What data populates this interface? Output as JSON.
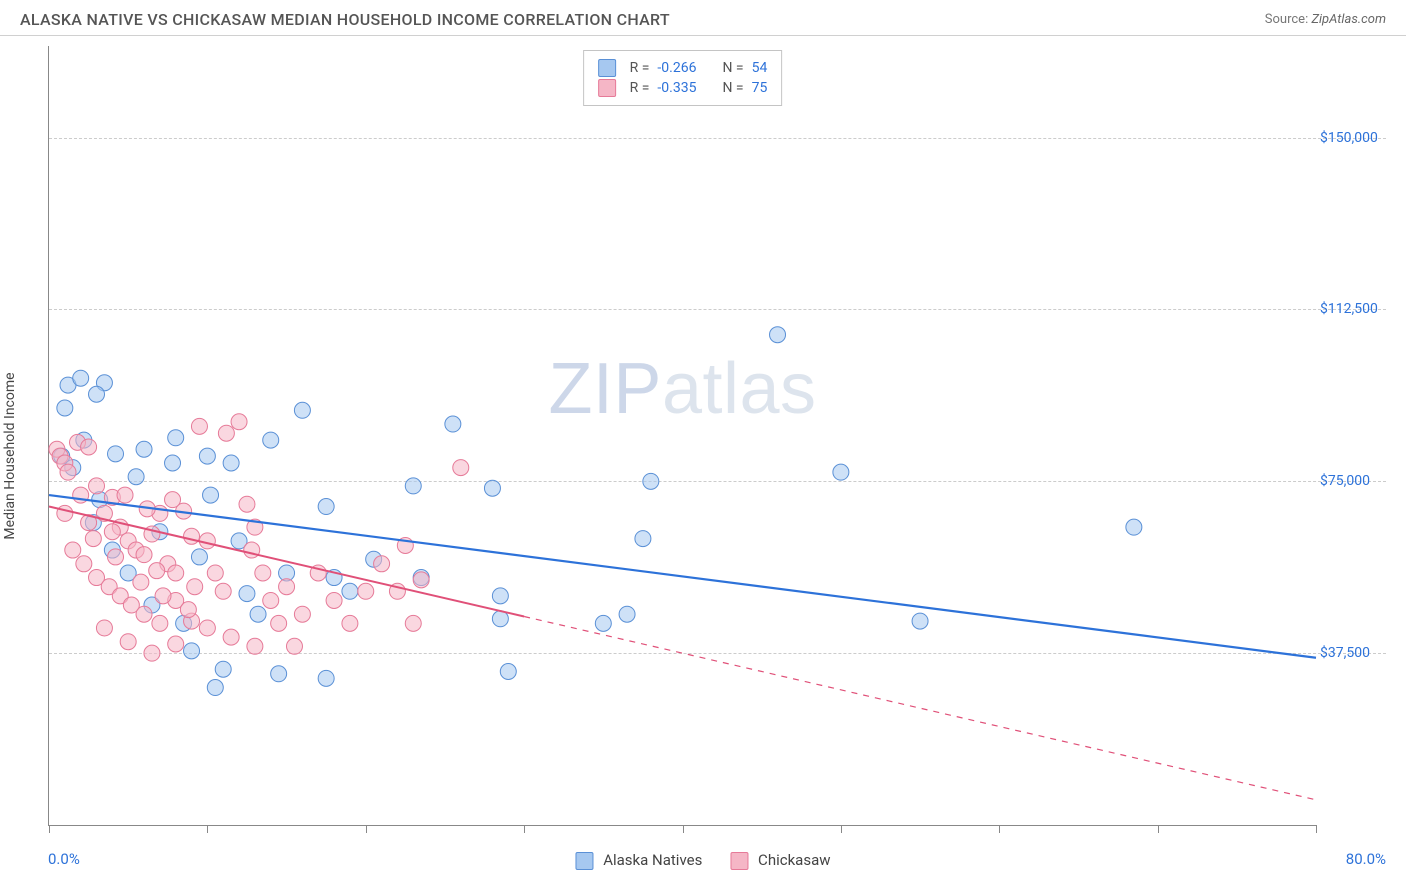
{
  "header": {
    "title": "ALASKA NATIVE VS CHICKASAW MEDIAN HOUSEHOLD INCOME CORRELATION CHART",
    "source_prefix": "Source: ",
    "source": "ZipAtlas.com"
  },
  "watermark": {
    "zip": "ZIP",
    "atlas": "atlas"
  },
  "chart": {
    "type": "scatter",
    "ylabel": "Median Household Income",
    "xlim": [
      0,
      80
    ],
    "ylim": [
      0,
      170000
    ],
    "xtick_positions": [
      0,
      10,
      20,
      30,
      40,
      50,
      60,
      70,
      80
    ],
    "ytick_values": [
      37500,
      75000,
      112500,
      150000
    ],
    "ytick_labels": [
      "$37,500",
      "$75,000",
      "$112,500",
      "$150,000"
    ],
    "xaxis_left_label": "0.0%",
    "xaxis_right_label": "80.0%",
    "grid_color": "#cccccc",
    "background_color": "#ffffff",
    "point_radius": 8,
    "point_opacity": 0.55,
    "axis_color": "#888888",
    "label_fontsize": 14,
    "axis_value_color": "#2d72d9",
    "series": [
      {
        "name": "Alaska Natives",
        "color_fill": "#a6c8f0",
        "color_stroke": "#5a90d6",
        "r_value": "-0.266",
        "n_value": "54",
        "trend": {
          "x1": 0,
          "y1": 72000,
          "x2": 80,
          "y2": 36500,
          "solid_until_x": 80,
          "stroke": "#2d72d9",
          "width": 2.2
        },
        "points": [
          [
            1.2,
            96000
          ],
          [
            2.0,
            97500
          ],
          [
            3.5,
            96500
          ],
          [
            1.0,
            91000
          ],
          [
            2.2,
            84000
          ],
          [
            0.8,
            80500
          ],
          [
            1.5,
            78000
          ],
          [
            3.0,
            94000
          ],
          [
            4.2,
            81000
          ],
          [
            6.0,
            82000
          ],
          [
            5.5,
            76000
          ],
          [
            7.8,
            79000
          ],
          [
            10.0,
            80500
          ],
          [
            10.2,
            72000
          ],
          [
            8.0,
            84500
          ],
          [
            12.0,
            62000
          ],
          [
            11.5,
            79000
          ],
          [
            14.0,
            84000
          ],
          [
            13.2,
            46000
          ],
          [
            15.0,
            55000
          ],
          [
            16.0,
            90500
          ],
          [
            17.5,
            69500
          ],
          [
            18.0,
            54000
          ],
          [
            19.0,
            51000
          ],
          [
            9.0,
            38000
          ],
          [
            10.5,
            30000
          ],
          [
            11.0,
            34000
          ],
          [
            14.5,
            33000
          ],
          [
            17.5,
            32000
          ],
          [
            20.5,
            58000
          ],
          [
            23.0,
            74000
          ],
          [
            23.5,
            54000
          ],
          [
            25.5,
            87500
          ],
          [
            28.0,
            73500
          ],
          [
            28.5,
            50000
          ],
          [
            28.5,
            45000
          ],
          [
            29.0,
            33500
          ],
          [
            35.0,
            44000
          ],
          [
            36.5,
            46000
          ],
          [
            37.5,
            62500
          ],
          [
            38.0,
            75000
          ],
          [
            46.0,
            107000
          ],
          [
            50.0,
            77000
          ],
          [
            55.0,
            44500
          ],
          [
            68.5,
            65000
          ],
          [
            2.8,
            66000
          ],
          [
            4.0,
            60000
          ],
          [
            5.0,
            55000
          ],
          [
            6.5,
            48000
          ],
          [
            8.5,
            44000
          ],
          [
            3.2,
            71000
          ],
          [
            7.0,
            64000
          ],
          [
            9.5,
            58500
          ],
          [
            12.5,
            50500
          ]
        ]
      },
      {
        "name": "Chickasaw",
        "color_fill": "#f5b6c6",
        "color_stroke": "#e67a98",
        "r_value": "-0.335",
        "n_value": "75",
        "trend": {
          "x1": 0,
          "y1": 69500,
          "x2": 80,
          "y2": 5500,
          "solid_until_x": 30,
          "stroke": "#e05078",
          "width": 2.0
        },
        "points": [
          [
            0.5,
            82000
          ],
          [
            0.7,
            80500
          ],
          [
            1.0,
            79000
          ],
          [
            1.2,
            77000
          ],
          [
            1.8,
            83500
          ],
          [
            2.5,
            82500
          ],
          [
            2.0,
            72000
          ],
          [
            3.0,
            74000
          ],
          [
            3.5,
            68000
          ],
          [
            4.0,
            71500
          ],
          [
            4.5,
            65000
          ],
          [
            5.0,
            62000
          ],
          [
            5.5,
            60000
          ],
          [
            6.0,
            59000
          ],
          [
            6.5,
            63500
          ],
          [
            7.0,
            68000
          ],
          [
            7.5,
            57000
          ],
          [
            8.0,
            55000
          ],
          [
            8.5,
            68500
          ],
          [
            9.0,
            63000
          ],
          [
            2.2,
            57000
          ],
          [
            3.0,
            54000
          ],
          [
            3.8,
            52000
          ],
          [
            4.5,
            50000
          ],
          [
            5.2,
            48000
          ],
          [
            6.0,
            46000
          ],
          [
            7.0,
            44000
          ],
          [
            8.0,
            49000
          ],
          [
            9.0,
            44500
          ],
          [
            10.0,
            62000
          ],
          [
            10.5,
            55000
          ],
          [
            11.0,
            51000
          ],
          [
            12.0,
            88000
          ],
          [
            12.5,
            70000
          ],
          [
            13.0,
            65000
          ],
          [
            13.5,
            55000
          ],
          [
            14.0,
            49000
          ],
          [
            14.5,
            44000
          ],
          [
            15.0,
            52000
          ],
          [
            15.5,
            39000
          ],
          [
            16.0,
            46000
          ],
          [
            17.0,
            55000
          ],
          [
            18.0,
            49000
          ],
          [
            19.0,
            44000
          ],
          [
            20.0,
            51000
          ],
          [
            21.0,
            57000
          ],
          [
            22.0,
            51000
          ],
          [
            22.5,
            61000
          ],
          [
            23.0,
            44000
          ],
          [
            23.5,
            53500
          ],
          [
            1.5,
            60000
          ],
          [
            2.8,
            62500
          ],
          [
            4.8,
            72000
          ],
          [
            6.2,
            69000
          ],
          [
            7.8,
            71000
          ],
          [
            9.5,
            87000
          ],
          [
            11.2,
            85500
          ],
          [
            5.8,
            53000
          ],
          [
            7.2,
            50000
          ],
          [
            8.8,
            47000
          ],
          [
            10.0,
            43000
          ],
          [
            11.5,
            41000
          ],
          [
            13.0,
            39000
          ],
          [
            3.5,
            43000
          ],
          [
            5.0,
            40000
          ],
          [
            6.5,
            37500
          ],
          [
            8.0,
            39500
          ],
          [
            4.2,
            58500
          ],
          [
            6.8,
            55500
          ],
          [
            9.2,
            52000
          ],
          [
            26.0,
            78000
          ],
          [
            1.0,
            68000
          ],
          [
            2.5,
            66000
          ],
          [
            4.0,
            64000
          ],
          [
            12.8,
            60000
          ]
        ]
      }
    ],
    "bottom_legend": [
      {
        "label": "Alaska Natives",
        "fill": "#a6c8f0",
        "stroke": "#5a90d6"
      },
      {
        "label": "Chickasaw",
        "fill": "#f5b6c6",
        "stroke": "#e67a98"
      }
    ]
  }
}
